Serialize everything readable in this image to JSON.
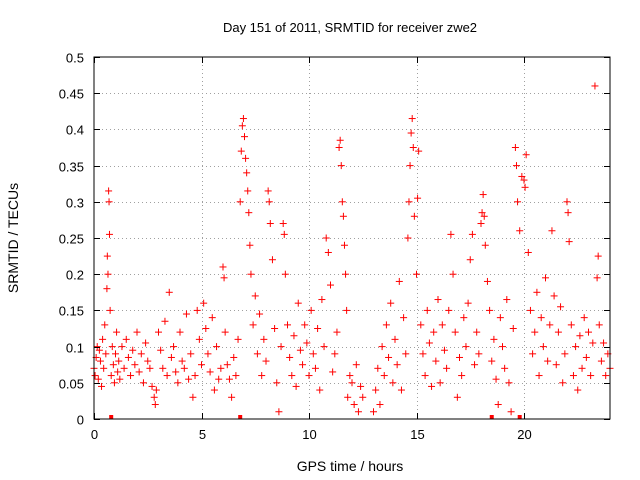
{
  "chart_data": {
    "type": "scatter",
    "title": "Day 151 of 2011, SRMTID for receiver zwe2",
    "xlabel": "GPS time / hours",
    "ylabel": "SRMTID / TECUs",
    "xlim": [
      0,
      24
    ],
    "ylim": [
      0,
      0.5
    ],
    "x_ticks": [
      0,
      5,
      10,
      15,
      20
    ],
    "x_tick_labels": [
      "0",
      "5",
      "10",
      "15",
      "20"
    ],
    "y_ticks": [
      0,
      0.05,
      0.1,
      0.15,
      0.2,
      0.25,
      0.3,
      0.35,
      0.4,
      0.45,
      0.5
    ],
    "y_tick_labels": [
      "0",
      "0.05",
      "0.1",
      "0.15",
      "0.2",
      "0.25",
      "0.3",
      "0.35",
      "0.4",
      "0.45",
      "0.5"
    ],
    "grid": true,
    "marker": "+",
    "color": "#ff0000",
    "series": [
      {
        "name": "SRMTID",
        "points": [
          [
            0.0,
            0.07
          ],
          [
            0.05,
            0.06
          ],
          [
            0.1,
            0.085
          ],
          [
            0.15,
            0.1
          ],
          [
            0.2,
            0.055
          ],
          [
            0.25,
            0.095
          ],
          [
            0.3,
            0.08
          ],
          [
            0.35,
            0.045
          ],
          [
            0.4,
            0.11
          ],
          [
            0.45,
            0.07
          ],
          [
            0.5,
            0.13
          ],
          [
            0.55,
            0.09
          ],
          [
            0.6,
            0.18
          ],
          [
            0.62,
            0.225
          ],
          [
            0.65,
            0.2
          ],
          [
            0.68,
            0.315
          ],
          [
            0.7,
            0.3
          ],
          [
            0.72,
            0.255
          ],
          [
            0.75,
            0.15
          ],
          [
            0.8,
            0.06
          ],
          [
            0.85,
            0.1
          ],
          [
            0.9,
            0.075
          ],
          [
            0.95,
            0.05
          ],
          [
            1.0,
            0.09
          ],
          [
            1.05,
            0.12
          ],
          [
            1.1,
            0.065
          ],
          [
            1.15,
            0.08
          ],
          [
            1.2,
            0.055
          ],
          [
            1.3,
            0.1
          ],
          [
            1.4,
            0.07
          ],
          [
            1.5,
            0.11
          ],
          [
            1.6,
            0.085
          ],
          [
            1.7,
            0.06
          ],
          [
            1.8,
            0.095
          ],
          [
            1.9,
            0.075
          ],
          [
            2.0,
            0.12
          ],
          [
            2.1,
            0.065
          ],
          [
            2.2,
            0.09
          ],
          [
            2.3,
            0.05
          ],
          [
            2.4,
            0.105
          ],
          [
            2.5,
            0.08
          ],
          [
            2.6,
            0.07
          ],
          [
            2.7,
            0.045
          ],
          [
            2.8,
            0.03
          ],
          [
            2.85,
            0.02
          ],
          [
            2.9,
            0.04
          ],
          [
            3.0,
            0.12
          ],
          [
            3.1,
            0.095
          ],
          [
            3.2,
            0.07
          ],
          [
            3.3,
            0.135
          ],
          [
            3.4,
            0.06
          ],
          [
            3.5,
            0.175
          ],
          [
            3.6,
            0.085
          ],
          [
            3.7,
            0.1
          ],
          [
            3.8,
            0.065
          ],
          [
            3.9,
            0.05
          ],
          [
            4.0,
            0.12
          ],
          [
            4.1,
            0.08
          ],
          [
            4.2,
            0.07
          ],
          [
            4.3,
            0.145
          ],
          [
            4.4,
            0.055
          ],
          [
            4.5,
            0.09
          ],
          [
            4.6,
            0.03
          ],
          [
            4.7,
            0.06
          ],
          [
            4.8,
            0.15
          ],
          [
            4.9,
            0.11
          ],
          [
            5.0,
            0.075
          ],
          [
            5.1,
            0.16
          ],
          [
            5.2,
            0.125
          ],
          [
            5.3,
            0.09
          ],
          [
            5.4,
            0.065
          ],
          [
            5.5,
            0.14
          ],
          [
            5.6,
            0.04
          ],
          [
            5.7,
            0.1
          ],
          [
            5.8,
            0.055
          ],
          [
            5.9,
            0.07
          ],
          [
            6.0,
            0.21
          ],
          [
            6.05,
            0.195
          ],
          [
            6.1,
            0.12
          ],
          [
            6.2,
            0.075
          ],
          [
            6.3,
            0.055
          ],
          [
            6.4,
            0.03
          ],
          [
            6.5,
            0.085
          ],
          [
            6.6,
            0.06
          ],
          [
            6.7,
            0.11
          ],
          [
            6.8,
            0.3
          ],
          [
            6.85,
            0.37
          ],
          [
            6.9,
            0.405
          ],
          [
            6.95,
            0.415
          ],
          [
            7.0,
            0.39
          ],
          [
            7.05,
            0.36
          ],
          [
            7.1,
            0.34
          ],
          [
            7.15,
            0.315
          ],
          [
            7.2,
            0.285
          ],
          [
            7.25,
            0.24
          ],
          [
            7.3,
            0.2
          ],
          [
            7.4,
            0.13
          ],
          [
            7.5,
            0.17
          ],
          [
            7.6,
            0.09
          ],
          [
            7.7,
            0.145
          ],
          [
            7.8,
            0.06
          ],
          [
            7.9,
            0.11
          ],
          [
            8.0,
            0.08
          ],
          [
            8.1,
            0.315
          ],
          [
            8.15,
            0.3
          ],
          [
            8.2,
            0.27
          ],
          [
            8.3,
            0.22
          ],
          [
            8.4,
            0.125
          ],
          [
            8.5,
            0.05
          ],
          [
            8.6,
            0.01
          ],
          [
            8.7,
            0.1
          ],
          [
            8.8,
            0.27
          ],
          [
            8.85,
            0.255
          ],
          [
            8.9,
            0.2
          ],
          [
            9.0,
            0.13
          ],
          [
            9.1,
            0.085
          ],
          [
            9.2,
            0.06
          ],
          [
            9.3,
            0.115
          ],
          [
            9.4,
            0.045
          ],
          [
            9.5,
            0.16
          ],
          [
            9.6,
            0.095
          ],
          [
            9.7,
            0.075
          ],
          [
            9.8,
            0.13
          ],
          [
            9.9,
            0.105
          ],
          [
            10.0,
            0.06
          ],
          [
            10.1,
            0.15
          ],
          [
            10.2,
            0.09
          ],
          [
            10.3,
            0.07
          ],
          [
            10.4,
            0.125
          ],
          [
            10.5,
            0.04
          ],
          [
            10.6,
            0.165
          ],
          [
            10.7,
            0.1
          ],
          [
            10.8,
            0.25
          ],
          [
            10.9,
            0.23
          ],
          [
            11.0,
            0.185
          ],
          [
            11.1,
            0.065
          ],
          [
            11.2,
            0.09
          ],
          [
            11.3,
            0.12
          ],
          [
            11.4,
            0.375
          ],
          [
            11.45,
            0.385
          ],
          [
            11.5,
            0.35
          ],
          [
            11.55,
            0.3
          ],
          [
            11.6,
            0.28
          ],
          [
            11.65,
            0.24
          ],
          [
            11.7,
            0.2
          ],
          [
            11.75,
            0.15
          ],
          [
            11.8,
            0.03
          ],
          [
            11.9,
            0.06
          ],
          [
            12.0,
            0.05
          ],
          [
            12.1,
            0.02
          ],
          [
            12.2,
            0.075
          ],
          [
            12.3,
            0.01
          ],
          [
            12.4,
            0.045
          ],
          [
            12.5,
            0.03
          ],
          [
            13.0,
            0.01
          ],
          [
            13.1,
            0.04
          ],
          [
            13.2,
            0.07
          ],
          [
            13.3,
            0.02
          ],
          [
            13.4,
            0.1
          ],
          [
            13.5,
            0.06
          ],
          [
            13.6,
            0.13
          ],
          [
            13.7,
            0.085
          ],
          [
            13.8,
            0.16
          ],
          [
            13.9,
            0.05
          ],
          [
            14.0,
            0.11
          ],
          [
            14.1,
            0.075
          ],
          [
            14.2,
            0.19
          ],
          [
            14.3,
            0.04
          ],
          [
            14.4,
            0.14
          ],
          [
            14.5,
            0.09
          ],
          [
            14.6,
            0.25
          ],
          [
            14.65,
            0.3
          ],
          [
            14.7,
            0.35
          ],
          [
            14.75,
            0.395
          ],
          [
            14.8,
            0.415
          ],
          [
            14.85,
            0.375
          ],
          [
            14.9,
            0.28
          ],
          [
            15.0,
            0.2
          ],
          [
            15.05,
            0.305
          ],
          [
            15.1,
            0.37
          ],
          [
            15.2,
            0.13
          ],
          [
            15.3,
            0.09
          ],
          [
            15.4,
            0.06
          ],
          [
            15.5,
            0.15
          ],
          [
            15.6,
            0.105
          ],
          [
            15.7,
            0.045
          ],
          [
            15.8,
            0.12
          ],
          [
            15.9,
            0.08
          ],
          [
            16.0,
            0.165
          ],
          [
            16.1,
            0.05
          ],
          [
            16.2,
            0.13
          ],
          [
            16.3,
            0.095
          ],
          [
            16.4,
            0.07
          ],
          [
            16.5,
            0.15
          ],
          [
            16.6,
            0.255
          ],
          [
            16.7,
            0.2
          ],
          [
            16.8,
            0.12
          ],
          [
            16.9,
            0.03
          ],
          [
            17.0,
            0.085
          ],
          [
            17.1,
            0.06
          ],
          [
            17.2,
            0.14
          ],
          [
            17.3,
            0.1
          ],
          [
            17.4,
            0.16
          ],
          [
            17.5,
            0.22
          ],
          [
            17.6,
            0.255
          ],
          [
            17.7,
            0.075
          ],
          [
            17.8,
            0.12
          ],
          [
            17.9,
            0.09
          ],
          [
            18.0,
            0.27
          ],
          [
            18.05,
            0.285
          ],
          [
            18.1,
            0.31
          ],
          [
            18.15,
            0.28
          ],
          [
            18.2,
            0.24
          ],
          [
            18.3,
            0.19
          ],
          [
            18.4,
            0.15
          ],
          [
            18.5,
            0.08
          ],
          [
            18.6,
            0.11
          ],
          [
            18.7,
            0.055
          ],
          [
            18.8,
            0.02
          ],
          [
            18.9,
            0.14
          ],
          [
            19.0,
            0.1
          ],
          [
            19.1,
            0.07
          ],
          [
            19.2,
            0.165
          ],
          [
            19.3,
            0.05
          ],
          [
            19.4,
            0.01
          ],
          [
            19.5,
            0.125
          ],
          [
            19.6,
            0.375
          ],
          [
            19.65,
            0.35
          ],
          [
            19.7,
            0.3
          ],
          [
            19.8,
            0.26
          ],
          [
            19.9,
            0.335
          ],
          [
            20.0,
            0.33
          ],
          [
            20.05,
            0.32
          ],
          [
            20.1,
            0.365
          ],
          [
            20.2,
            0.23
          ],
          [
            20.3,
            0.15
          ],
          [
            20.4,
            0.09
          ],
          [
            20.5,
            0.12
          ],
          [
            20.6,
            0.175
          ],
          [
            20.7,
            0.06
          ],
          [
            20.8,
            0.14
          ],
          [
            20.9,
            0.1
          ],
          [
            21.0,
            0.195
          ],
          [
            21.1,
            0.08
          ],
          [
            21.2,
            0.13
          ],
          [
            21.3,
            0.26
          ],
          [
            21.4,
            0.17
          ],
          [
            21.5,
            0.075
          ],
          [
            21.6,
            0.12
          ],
          [
            21.7,
            0.155
          ],
          [
            21.8,
            0.05
          ],
          [
            21.9,
            0.09
          ],
          [
            22.0,
            0.3
          ],
          [
            22.05,
            0.285
          ],
          [
            22.1,
            0.245
          ],
          [
            22.2,
            0.13
          ],
          [
            22.3,
            0.06
          ],
          [
            22.4,
            0.1
          ],
          [
            22.5,
            0.04
          ],
          [
            22.6,
            0.115
          ],
          [
            22.7,
            0.07
          ],
          [
            22.8,
            0.14
          ],
          [
            22.9,
            0.085
          ],
          [
            23.0,
            0.12
          ],
          [
            23.1,
            0.06
          ],
          [
            23.2,
            0.105
          ],
          [
            23.3,
            0.46
          ],
          [
            23.4,
            0.195
          ],
          [
            23.45,
            0.225
          ],
          [
            23.5,
            0.13
          ],
          [
            23.6,
            0.08
          ],
          [
            23.7,
            0.105
          ],
          [
            23.8,
            0.06
          ],
          [
            23.9,
            0.09
          ],
          [
            24.0,
            0.07
          ]
        ]
      }
    ],
    "bottom_markers_x": [
      0.8,
      6.8,
      18.5,
      19.8
    ]
  }
}
